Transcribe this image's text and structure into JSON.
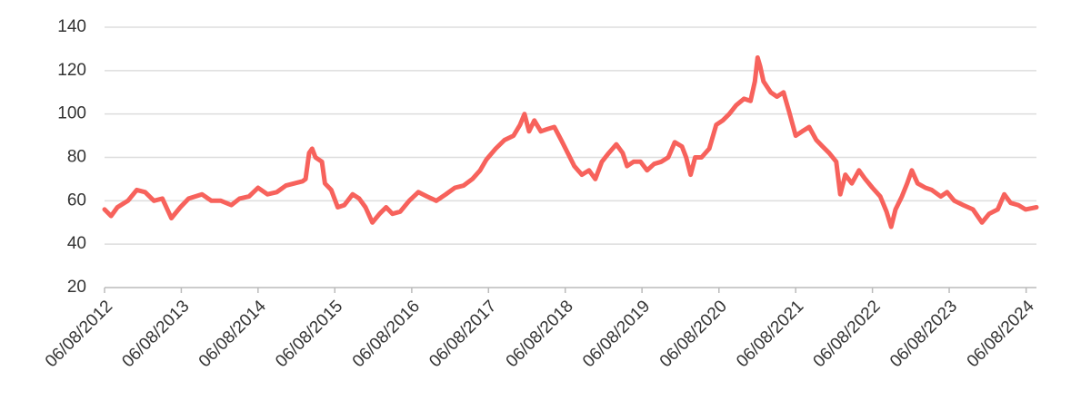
{
  "chart_data": {
    "type": "line",
    "x": [
      "2012-08-06",
      "2012-09-06",
      "2012-10-06",
      "2012-11-25",
      "2013-01-06",
      "2013-02-15",
      "2013-03-29",
      "2013-05-08",
      "2013-06-20",
      "2013-08-01",
      "2013-09-10",
      "2013-11-12",
      "2013-12-27",
      "2014-02-10",
      "2014-04-01",
      "2014-05-10",
      "2014-06-24",
      "2014-08-06",
      "2014-09-20",
      "2014-11-03",
      "2014-12-16",
      "2015-03-06",
      "2015-03-20",
      "2015-04-06",
      "2015-04-20",
      "2015-05-06",
      "2015-06-06",
      "2015-06-20",
      "2015-07-20",
      "2015-08-20",
      "2015-09-20",
      "2015-10-30",
      "2015-11-30",
      "2015-12-30",
      "2016-02-01",
      "2016-03-06",
      "2016-04-06",
      "2016-05-06",
      "2016-06-12",
      "2016-07-25",
      "2016-09-06",
      "2016-10-18",
      "2016-12-01",
      "2017-01-15",
      "2017-02-27",
      "2017-04-09",
      "2017-05-21",
      "2017-06-27",
      "2017-07-27",
      "2017-09-09",
      "2017-10-21",
      "2017-12-03",
      "2018-01-03",
      "2018-01-24",
      "2018-02-15",
      "2018-03-12",
      "2018-04-12",
      "2018-05-12",
      "2018-06-15",
      "2018-07-18",
      "2018-08-18",
      "2018-09-18",
      "2018-10-24",
      "2018-11-27",
      "2018-12-27",
      "2019-01-27",
      "2019-03-01",
      "2019-04-06",
      "2019-05-06",
      "2019-05-27",
      "2019-06-27",
      "2019-07-30",
      "2019-08-30",
      "2019-10-03",
      "2019-11-06",
      "2019-12-09",
      "2020-01-09",
      "2020-02-12",
      "2020-03-03",
      "2020-03-24",
      "2020-04-15",
      "2020-05-15",
      "2020-06-21",
      "2020-07-24",
      "2020-08-24",
      "2020-09-24",
      "2020-10-27",
      "2020-12-03",
      "2021-01-03",
      "2021-01-24",
      "2021-02-06",
      "2021-02-18",
      "2021-03-06",
      "2021-04-09",
      "2021-05-09",
      "2021-06-09",
      "2021-07-06",
      "2021-08-06",
      "2021-09-06",
      "2021-10-09",
      "2021-11-12",
      "2021-12-12",
      "2022-01-12",
      "2022-02-15",
      "2022-03-06",
      "2022-03-30",
      "2022-04-30",
      "2022-06-03",
      "2022-07-03",
      "2022-08-06",
      "2022-09-12",
      "2022-10-12",
      "2022-11-03",
      "2022-11-24",
      "2022-12-24",
      "2023-01-18",
      "2023-02-09",
      "2023-03-09",
      "2023-04-15",
      "2023-05-15",
      "2023-06-27",
      "2023-07-27",
      "2023-08-30",
      "2023-10-12",
      "2023-11-27",
      "2024-01-09",
      "2024-02-12",
      "2024-03-24",
      "2024-04-24",
      "2024-05-24",
      "2024-06-30",
      "2024-08-03",
      "2024-09-24"
    ],
    "values": [
      56,
      53,
      57,
      60,
      65,
      64,
      60,
      61,
      52,
      57,
      61,
      63,
      60,
      60,
      58,
      61,
      62,
      66,
      63,
      64,
      67,
      69,
      70,
      82,
      84,
      80,
      78,
      68,
      65,
      57,
      58,
      63,
      61,
      57,
      50,
      54,
      57,
      54,
      55,
      60,
      64,
      62,
      60,
      63,
      66,
      67,
      70,
      74,
      79,
      84,
      88,
      90,
      95,
      100,
      92,
      97,
      92,
      93,
      94,
      88,
      82,
      76,
      72,
      74,
      70,
      78,
      82,
      86,
      82,
      76,
      78,
      78,
      74,
      77,
      78,
      80,
      87,
      85,
      80,
      72,
      80,
      80,
      84,
      95,
      97,
      100,
      104,
      107,
      106,
      115,
      126,
      122,
      115,
      110,
      108,
      110,
      101,
      90,
      92,
      94,
      88,
      85,
      82,
      78,
      63,
      72,
      68,
      74,
      70,
      66,
      62,
      55,
      48,
      56,
      62,
      68,
      74,
      68,
      66,
      65,
      62,
      64,
      60,
      58,
      56,
      50,
      54,
      56,
      63,
      59,
      58,
      56,
      57
    ],
    "color": "#f7625c",
    "xlim": [
      "2012-08-06",
      "2024-09-24"
    ],
    "xticks": [
      {
        "value": "2012-08-06",
        "label": "06/08/2012"
      },
      {
        "value": "2013-08-06",
        "label": "06/08/2013"
      },
      {
        "value": "2014-08-06",
        "label": "06/08/2014"
      },
      {
        "value": "2015-08-06",
        "label": "06/08/2015"
      },
      {
        "value": "2016-08-06",
        "label": "06/08/2016"
      },
      {
        "value": "2017-08-06",
        "label": "06/08/2017"
      },
      {
        "value": "2018-08-06",
        "label": "06/08/2018"
      },
      {
        "value": "2019-08-06",
        "label": "06/08/2019"
      },
      {
        "value": "2020-08-06",
        "label": "06/08/2020"
      },
      {
        "value": "2021-08-06",
        "label": "06/08/2021"
      },
      {
        "value": "2022-08-06",
        "label": "06/08/2022"
      },
      {
        "value": "2023-08-06",
        "label": "06/08/2023"
      },
      {
        "value": "2024-08-06",
        "label": "06/08/2024"
      }
    ],
    "ylim": [
      20,
      140
    ],
    "yticks": [
      20,
      40,
      60,
      80,
      100,
      120,
      140
    ],
    "grid": true
  }
}
